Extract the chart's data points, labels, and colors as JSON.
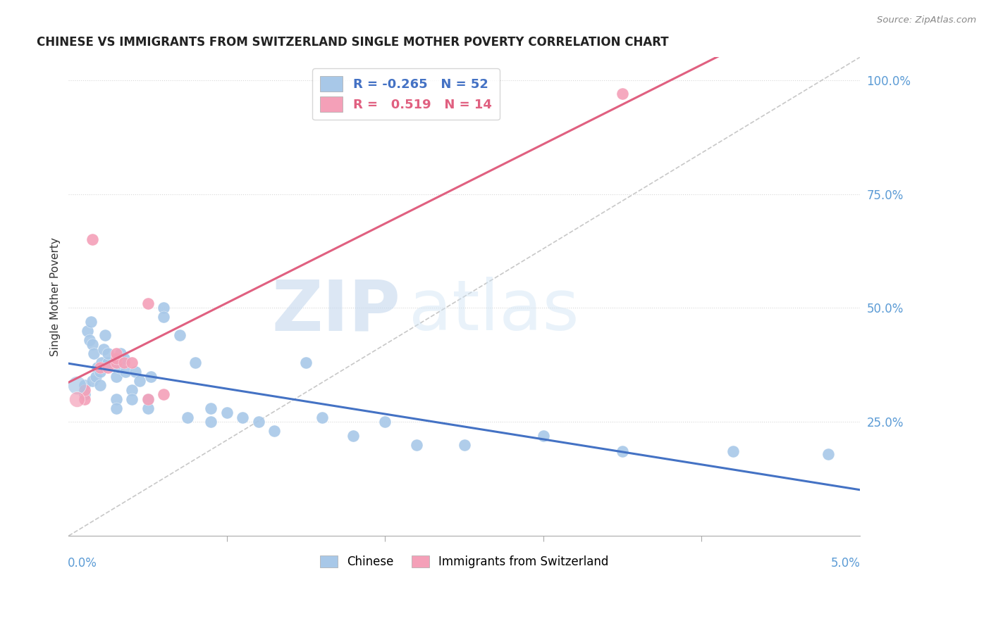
{
  "title": "CHINESE VS IMMIGRANTS FROM SWITZERLAND SINGLE MOTHER POVERTY CORRELATION CHART",
  "source": "Source: ZipAtlas.com",
  "ylabel": "Single Mother Poverty",
  "watermark_zip": "ZIP",
  "watermark_atlas": "atlas",
  "legend_chinese_r": "-0.265",
  "legend_chinese_n": "52",
  "legend_swiss_r": "0.519",
  "legend_swiss_n": "14",
  "chinese_color": "#a8c8e8",
  "swiss_color": "#f4a0b8",
  "chinese_line_color": "#4472c4",
  "swiss_line_color": "#e06080",
  "diagonal_color": "#c8c8c8",
  "background_color": "#ffffff",
  "chinese_x": [
    0.001,
    0.001,
    0.0012,
    0.0013,
    0.0014,
    0.0015,
    0.0015,
    0.0016,
    0.0017,
    0.0018,
    0.002,
    0.002,
    0.0021,
    0.0022,
    0.0023,
    0.0025,
    0.0025,
    0.003,
    0.003,
    0.003,
    0.0032,
    0.0033,
    0.0035,
    0.0036,
    0.004,
    0.004,
    0.0042,
    0.0045,
    0.005,
    0.005,
    0.0052,
    0.006,
    0.006,
    0.007,
    0.0075,
    0.008,
    0.009,
    0.009,
    0.01,
    0.011,
    0.012,
    0.013,
    0.015,
    0.016,
    0.018,
    0.02,
    0.022,
    0.025,
    0.03,
    0.035,
    0.042,
    0.048
  ],
  "chinese_y": [
    0.33,
    0.31,
    0.45,
    0.43,
    0.47,
    0.42,
    0.34,
    0.4,
    0.35,
    0.37,
    0.33,
    0.36,
    0.38,
    0.41,
    0.44,
    0.38,
    0.4,
    0.35,
    0.3,
    0.28,
    0.37,
    0.4,
    0.39,
    0.36,
    0.32,
    0.3,
    0.36,
    0.34,
    0.3,
    0.28,
    0.35,
    0.5,
    0.48,
    0.44,
    0.26,
    0.38,
    0.25,
    0.28,
    0.27,
    0.26,
    0.25,
    0.23,
    0.38,
    0.26,
    0.22,
    0.25,
    0.2,
    0.2,
    0.22,
    0.185,
    0.185,
    0.18
  ],
  "swiss_x": [
    0.001,
    0.001,
    0.0015,
    0.002,
    0.0025,
    0.003,
    0.003,
    0.003,
    0.0035,
    0.004,
    0.005,
    0.005,
    0.006,
    0.035
  ],
  "swiss_y": [
    0.3,
    0.32,
    0.65,
    0.37,
    0.37,
    0.38,
    0.39,
    0.4,
    0.38,
    0.38,
    0.51,
    0.3,
    0.31,
    0.97
  ],
  "xlim": [
    0.0,
    0.05
  ],
  "ylim": [
    0.0,
    1.05
  ],
  "ytick_positions": [
    0.25,
    0.5,
    0.75,
    1.0
  ],
  "ytick_labels": [
    "25.0%",
    "50.0%",
    "75.0%",
    "100.0%"
  ]
}
